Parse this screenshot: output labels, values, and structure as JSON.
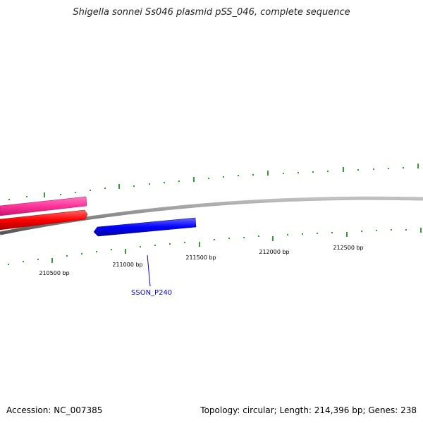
{
  "title": "Shigella sonnei Ss046 plasmid pSS_046, complete sequence",
  "footer": {
    "accession": "Accession: NC_007385",
    "summary": "Topology: circular; Length: 214,396 bp; Genes: 238"
  },
  "scale": {
    "tick_labels": [
      "210500 bp",
      "211000 bp",
      "211500 bp",
      "212000 bp",
      "212500 bp"
    ]
  },
  "genes": [
    {
      "strand": "plus",
      "color": "#ff3399"
    },
    {
      "strand": "plus",
      "color": "#ff0000"
    },
    {
      "strand": "minus",
      "color": "#0000ff",
      "label": "SSON_P240"
    }
  ],
  "colors": {
    "backbone": "#808080",
    "ticks": "#008000",
    "label_line": "#0000cc"
  }
}
